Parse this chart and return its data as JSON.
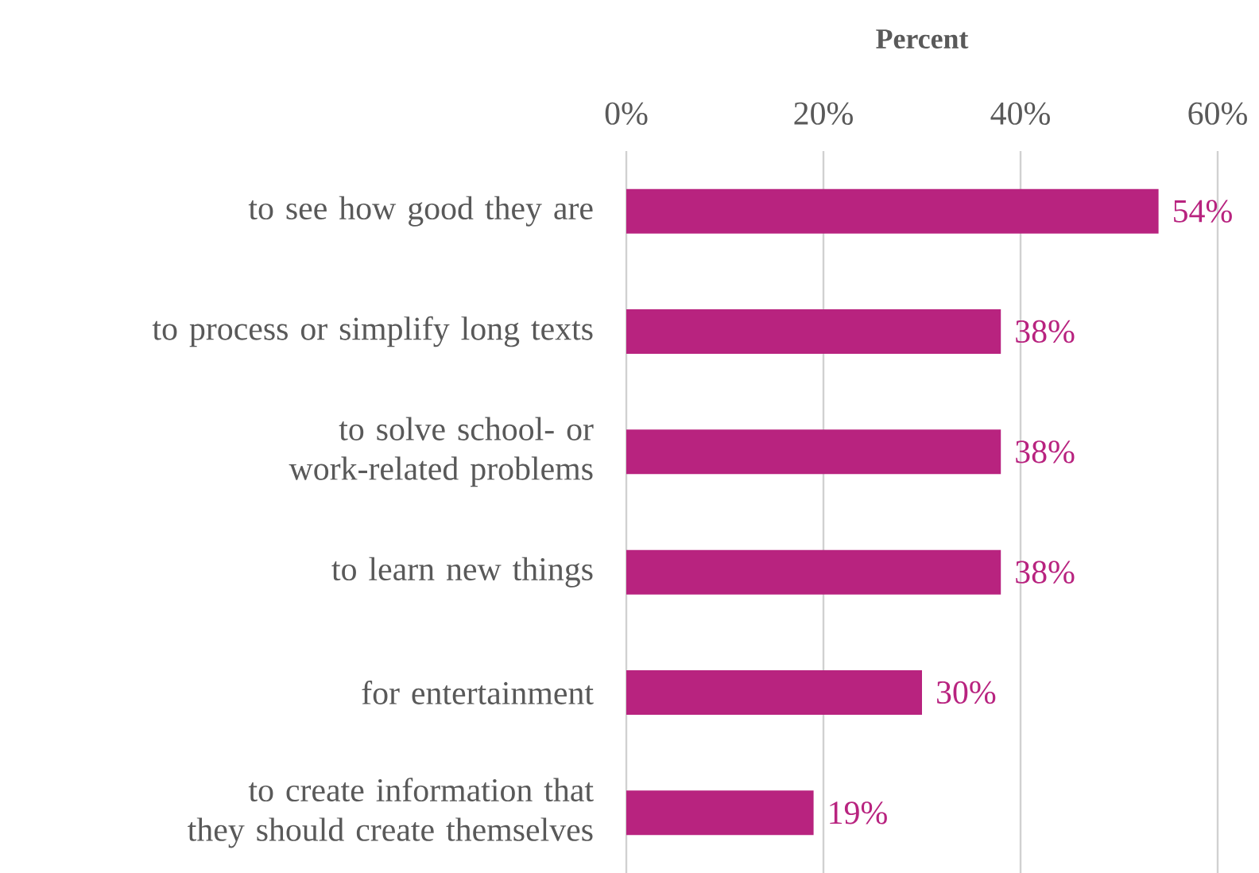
{
  "chart_data": {
    "type": "bar",
    "orientation": "horizontal",
    "xlabel": "Percent",
    "categories": [
      "to see how good they are",
      "to process or simplify long texts",
      "to solve school- or work-related problems",
      "to learn new things",
      "for entertainment",
      "to create information that they should create themselves"
    ],
    "values": [
      54,
      38,
      38,
      38,
      30,
      19
    ],
    "value_labels": [
      "54%",
      "38%",
      "38%",
      "38%",
      "30%",
      "19%"
    ],
    "color": "#b8237f",
    "xlim": [
      0,
      60
    ],
    "xticks": [
      {
        "value": 0,
        "label": "0%"
      },
      {
        "value": 20,
        "label": "20%"
      },
      {
        "value": 40,
        "label": "40%"
      },
      {
        "value": 60,
        "label": "60%"
      }
    ],
    "grid": "x"
  }
}
